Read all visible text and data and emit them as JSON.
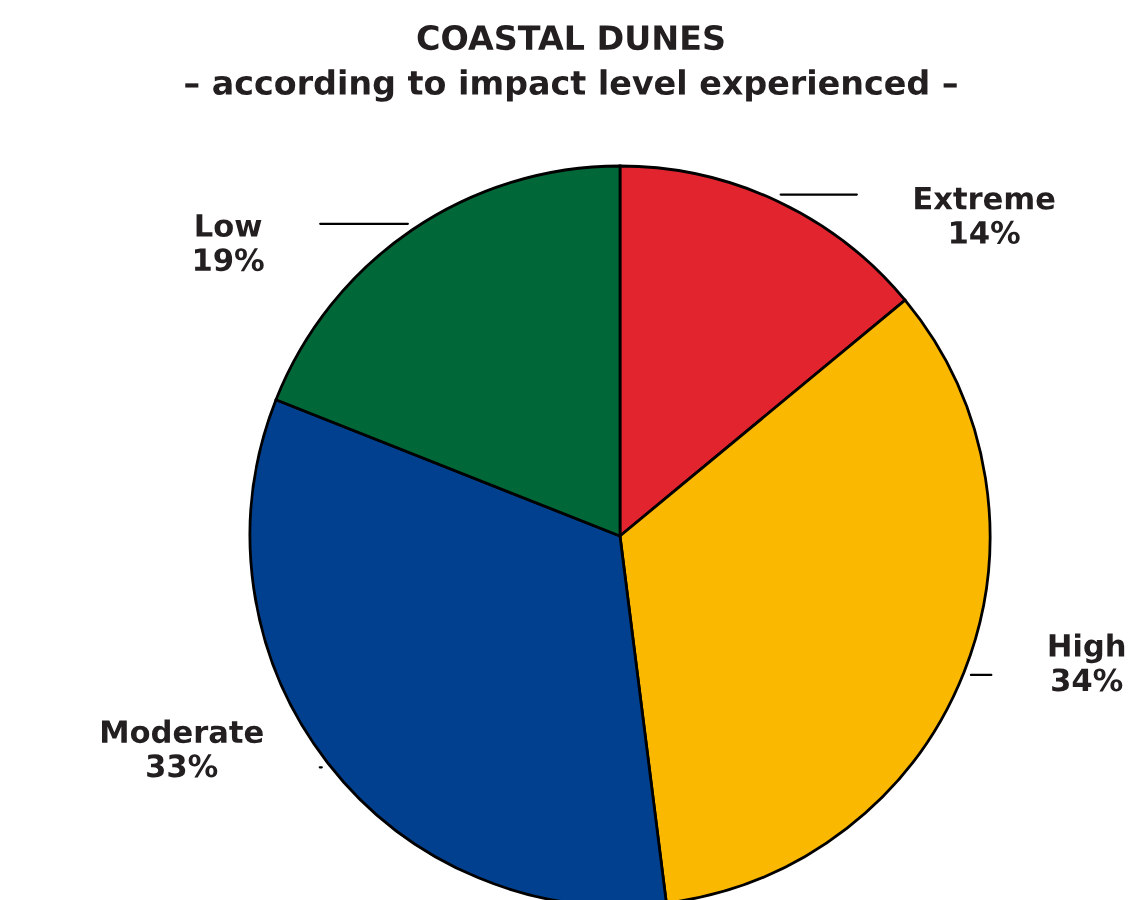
{
  "chart_data": {
    "type": "pie",
    "title": "COASTAL DUNES",
    "subtitle": "– according to impact level experienced –",
    "categories": [
      "Extreme",
      "High",
      "Moderate",
      "Low"
    ],
    "values": [
      14,
      34,
      33,
      19
    ],
    "value_labels": [
      "14%",
      "34%",
      "33%",
      "19%"
    ],
    "colors": [
      "#e2242f",
      "#fbb800",
      "#00408e",
      "#006838"
    ]
  }
}
